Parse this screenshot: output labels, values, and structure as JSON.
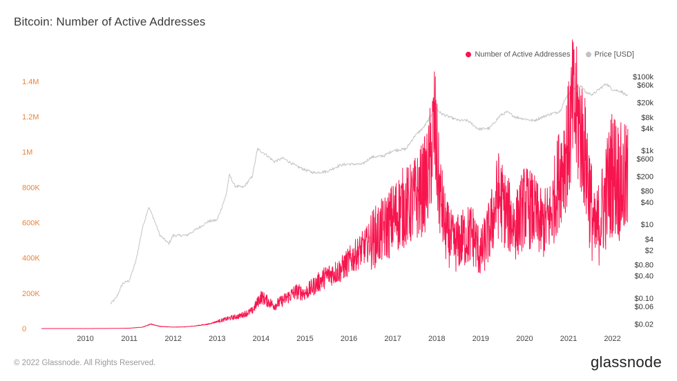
{
  "chart_data": {
    "type": "line",
    "title": "Bitcoin: Number of Active Addresses",
    "legend_position": "top-right",
    "grid": false,
    "x_ticks": [
      "2010",
      "2011",
      "2012",
      "2013",
      "2014",
      "2015",
      "2016",
      "2017",
      "2018",
      "2019",
      "2020",
      "2021",
      "2022"
    ],
    "y_left": {
      "scale": "linear",
      "range": [
        0,
        1450000
      ],
      "ticks": [
        0,
        200000,
        400000,
        600000,
        800000,
        1000000,
        1200000,
        1400000
      ],
      "tick_labels": [
        "0",
        "200K",
        "400K",
        "600K",
        "800K",
        "1M",
        "1.2M",
        "1.4M"
      ]
    },
    "y_right": {
      "scale": "log",
      "range": [
        0.015,
        130000
      ],
      "ticks": [
        0.02,
        0.06,
        0.1,
        0.4,
        0.8,
        2,
        4,
        10,
        40,
        80,
        200,
        600,
        1000,
        4000,
        8000,
        20000,
        60000,
        100000
      ],
      "tick_labels": [
        "$0.02",
        "$0.06",
        "$0.10",
        "$0.40",
        "$0.80",
        "$2",
        "$4",
        "$10",
        "$40",
        "$80",
        "$200",
        "$600",
        "$1k",
        "$4k",
        "$8k",
        "$20k",
        "$60k",
        "$100k"
      ]
    },
    "series": [
      {
        "name": "Number of Active Addresses",
        "axis": "left",
        "color": "#f7154e",
        "x": [
          2009.0,
          2009.5,
          2010.0,
          2010.5,
          2011.0,
          2011.3,
          2011.5,
          2011.7,
          2012.0,
          2012.3,
          2012.5,
          2012.8,
          2013.0,
          2013.3,
          2013.5,
          2013.8,
          2013.9,
          2014.0,
          2014.3,
          2014.5,
          2014.8,
          2015.0,
          2015.3,
          2015.5,
          2015.8,
          2016.0,
          2016.3,
          2016.5,
          2016.8,
          2017.0,
          2017.2,
          2017.4,
          2017.6,
          2017.8,
          2017.95,
          2018.05,
          2018.2,
          2018.4,
          2018.6,
          2018.8,
          2019.0,
          2019.2,
          2019.4,
          2019.6,
          2019.8,
          2020.0,
          2020.2,
          2020.4,
          2020.6,
          2020.8,
          2021.0,
          2021.1,
          2021.25,
          2021.4,
          2021.5,
          2021.6,
          2021.8,
          2022.0,
          2022.2,
          2022.35
        ],
        "values": [
          0,
          0,
          0,
          500,
          2000,
          8000,
          25000,
          12000,
          8000,
          10000,
          15000,
          25000,
          40000,
          60000,
          70000,
          100000,
          140000,
          180000,
          130000,
          160000,
          210000,
          200000,
          260000,
          300000,
          330000,
          380000,
          450000,
          500000,
          560000,
          620000,
          680000,
          700000,
          760000,
          850000,
          1150000,
          800000,
          560000,
          470000,
          510000,
          540000,
          420000,
          550000,
          760000,
          650000,
          580000,
          700000,
          660000,
          580000,
          640000,
          880000,
          1050000,
          1250000,
          1150000,
          950000,
          720000,
          520000,
          700000,
          900000,
          820000,
          820000
        ]
      },
      {
        "name": "Price [USD]",
        "axis": "right",
        "color": "#c3c3c3",
        "x": [
          2010.57,
          2010.7,
          2010.85,
          2011.0,
          2011.15,
          2011.3,
          2011.44,
          2011.55,
          2011.7,
          2011.9,
          2012.0,
          2012.3,
          2012.5,
          2012.8,
          2013.0,
          2013.2,
          2013.28,
          2013.4,
          2013.6,
          2013.8,
          2013.92,
          2014.1,
          2014.3,
          2014.5,
          2014.8,
          2015.0,
          2015.2,
          2015.5,
          2015.8,
          2016.0,
          2016.3,
          2016.5,
          2016.8,
          2017.0,
          2017.3,
          2017.5,
          2017.7,
          2017.85,
          2017.96,
          2018.1,
          2018.3,
          2018.5,
          2018.7,
          2018.95,
          2019.2,
          2019.45,
          2019.6,
          2019.8,
          2020.0,
          2020.2,
          2020.5,
          2020.8,
          2020.95,
          2021.1,
          2021.28,
          2021.4,
          2021.55,
          2021.7,
          2021.86,
          2022.0,
          2022.2,
          2022.35
        ],
        "values": [
          0.07,
          0.1,
          0.25,
          0.3,
          1,
          8,
          30,
          15,
          5,
          3,
          5,
          5,
          7,
          12,
          13,
          60,
          220,
          110,
          100,
          200,
          1100,
          800,
          500,
          620,
          380,
          300,
          250,
          270,
          400,
          430,
          420,
          650,
          720,
          1000,
          1100,
          2500,
          4200,
          8000,
          15000,
          10000,
          8000,
          6500,
          6500,
          3800,
          4000,
          9000,
          11000,
          8000,
          7200,
          6400,
          9000,
          11500,
          28000,
          45000,
          58000,
          37000,
          33000,
          46000,
          65000,
          45000,
          40000,
          29000
        ]
      }
    ]
  },
  "legend": [
    {
      "label": "Number of Active Addresses",
      "color": "#f7154e"
    },
    {
      "label": "Price [USD]",
      "color": "#c3c3c3"
    }
  ],
  "footer": "© 2022 Glassnode. All Rights Reserved.",
  "brand": "glassnode"
}
